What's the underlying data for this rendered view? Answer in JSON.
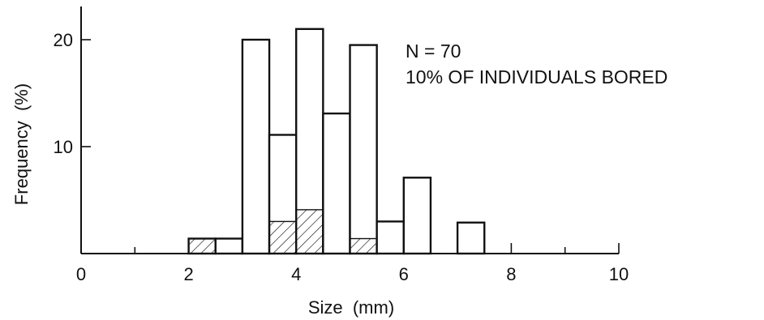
{
  "chart_data": {
    "type": "bar",
    "title": "",
    "xlabel": "Size  (mm)",
    "ylabel": "Frequency  (%)",
    "xlim": [
      0,
      10
    ],
    "ylim": [
      0,
      23
    ],
    "x_ticks": [
      0,
      2,
      4,
      6,
      8,
      10
    ],
    "x_tick_labels": [
      "0",
      "2",
      "4",
      "6",
      "8",
      "10"
    ],
    "x_minor_ticks": [
      1,
      3,
      5,
      7,
      9
    ],
    "y_ticks": [
      10,
      20
    ],
    "y_tick_labels": [
      "10",
      "20"
    ],
    "bin_width": 0.5,
    "bins": [
      {
        "start": 2.0,
        "total": 1.4,
        "bored": 1.4
      },
      {
        "start": 2.5,
        "total": 1.4,
        "bored": 0
      },
      {
        "start": 3.0,
        "total": 20,
        "bored": 0
      },
      {
        "start": 3.5,
        "total": 11.1,
        "bored": 3.0
      },
      {
        "start": 4.0,
        "total": 21.0,
        "bored": 4.1
      },
      {
        "start": 4.5,
        "total": 13.1,
        "bored": 0
      },
      {
        "start": 5.0,
        "total": 19.5,
        "bored": 1.4
      },
      {
        "start": 5.5,
        "total": 3.0,
        "bored": 0
      },
      {
        "start": 6.0,
        "total": 7.1,
        "bored": 0
      },
      {
        "start": 7.0,
        "total": 2.9,
        "bored": 0
      }
    ],
    "series": [
      {
        "name": "",
        "fill": "#ffffff"
      },
      {
        "name": "",
        "fill": "hatched"
      }
    ],
    "annotations": [
      "N = 70",
      "10% OF INDIVIDUALS BORED"
    ],
    "grid": false,
    "legend": "none"
  }
}
